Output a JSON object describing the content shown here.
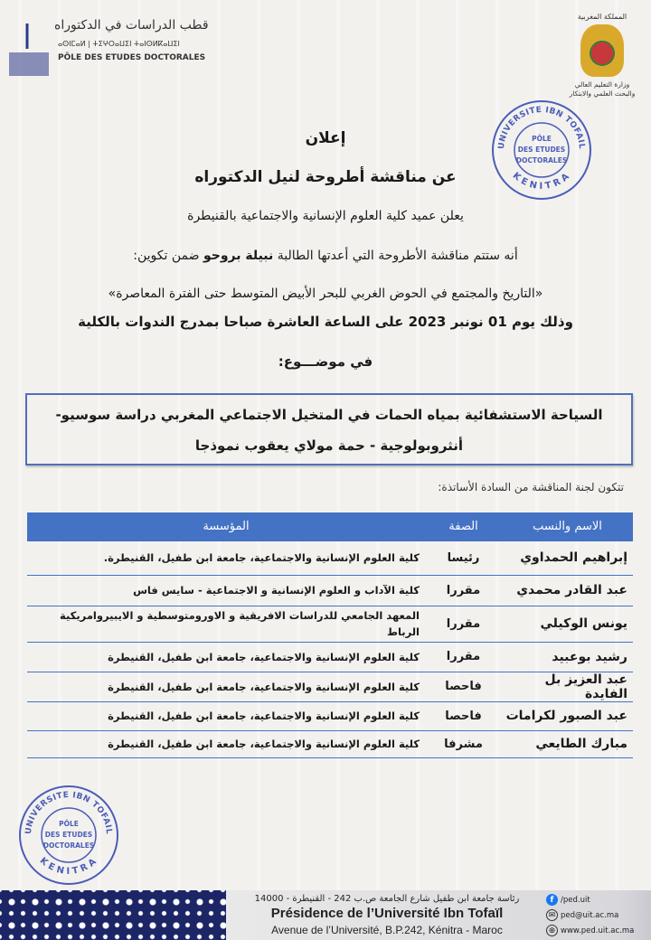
{
  "header": {
    "ped_logo": {
      "arabic": "قطب الدراسات في الدكتوراه",
      "tifinagh": "ⴰⵙⵏⵎⴰⵍ | ⵜⵉⵖⵔⴰⵡⵉⵏ ⵜⴰⵏⵙⵍⴽⴰⵡⵉⵏ",
      "french": "PÔLE DES ETUDES DOCTORALES",
      "university": "Ibn Tofail University"
    },
    "ministry": {
      "kingdom": "المملكة المغربية",
      "line1": "وزارة التعليم العالي",
      "line2": "والبحث العلمي والابتكار"
    }
  },
  "stamp": {
    "top": "UNIVERSITE IBN TOFAIL",
    "center": [
      "PÔLE",
      "DES ETUDES",
      "DOCTORALES"
    ],
    "bottom": "KENITRA"
  },
  "announcement": {
    "title": "إعلان",
    "subtitle": "عن مناقشة أطروحة لنيل الدكتوراه",
    "line1": "يعلن عميد كلية العلوم الإنسانية والاجتماعية  بالقنيطرة",
    "line2_pre": "أنه ستتم مناقشة الأطروحة التي أعدتها الطالبة",
    "student": "نبيلة بروحو",
    "line2_post": "ضمن تكوين:",
    "program": "«التاريخ والمجتمع في الحوض الغربي للبحر الأبيض المتوسط حتى الفترة المعاصرة»",
    "date_line_pre": "وذلك يوم",
    "date": "01 نونبر 2023",
    "date_line_post": "على الساعة العاشرة صباحا بمدرج الندوات بالكلية",
    "topic_label": "في موضـــوع:",
    "topic_line1": "السياحة الاستشفائية بمياه الحمات في المتخيل الاجتماعي المغربي دراسة سوسيو-",
    "topic_line2": "أنثروبولوجية - حمة مولاي يعقوب نموذجا",
    "committee_intro": "تتكون لجنة المناقشة من السادة الأساتذة:"
  },
  "table": {
    "headers": [
      "الاسم والنسب",
      "الصفة",
      "المؤسسة"
    ],
    "rows": [
      {
        "name": "إبراهيم الحمداوي",
        "role": "رئيسا",
        "institution": "كلية العلوم الإنسانية والاجتماعية، جامعة ابن طفيل، القنيطرة."
      },
      {
        "name": "عبد القادر محمدي",
        "role": "مقررا",
        "institution": "كلية الآداب و العلوم الإنسانية و الاجتماعية - سايس فاس"
      },
      {
        "name": "يونس الوكيلي",
        "role": "مقررا",
        "institution": "المعهد الجامعي للدراسات الافريقية و الاورومتوسطية و الايبيروامريكية الرباط"
      },
      {
        "name": "رشيد بوعبيد",
        "role": "مقررا",
        "institution": "كلية العلوم الإنسانية والاجتماعية، جامعة ابن طفيل، القنيطرة"
      },
      {
        "name": "عبد العزيز بل الفايدة",
        "role": "فاحصا",
        "institution": "كلية العلوم الإنسانية والاجتماعية، جامعة ابن طفيل، القنيطرة"
      },
      {
        "name": "عبد الصبور لكرامات",
        "role": "فاحصا",
        "institution": "كلية العلوم الإنسانية والاجتماعية، جامعة ابن طفيل، القنيطرة"
      },
      {
        "name": "مبارك الطايعي",
        "role": "مشرفا",
        "institution": "كلية العلوم الإنسانية والاجتماعية، جامعة ابن طفيل، القنيطرة"
      }
    ]
  },
  "footer": {
    "arabic_address": "رئاسة جامعة ابن طفيل شارع الجامعة ص.ب 242 - القنيطرة - 14000",
    "title": "Présidence de l’Université Ibn Tofaïl",
    "address": "Avenue de l’Université, B.P.242, Kénitra - Maroc",
    "facebook": "/ped.uit",
    "email": "ped@uit.ac.ma",
    "website": "www.ped.uit.ac.ma"
  },
  "colors": {
    "accent": "#4472c4",
    "stamp": "#4a5db8",
    "footer_pattern": "#1c2566"
  }
}
